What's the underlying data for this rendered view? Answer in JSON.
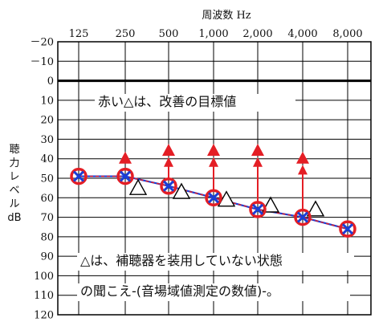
{
  "chart_data": {
    "type": "line",
    "title": "周波数 Hz",
    "xlabel": "周波数 Hz",
    "ylabel": [
      "聴",
      "力",
      "レ",
      "ベ",
      "ル",
      "dB"
    ],
    "x": [
      "125",
      "250",
      "500",
      "1,000",
      "2,000",
      "4,000",
      "8,000"
    ],
    "y_ticks": [
      "－20",
      "－10",
      "0",
      "10",
      "20",
      "30",
      "40",
      "50",
      "60",
      "70",
      "80",
      "90",
      "100",
      "110",
      "120"
    ],
    "ylim": [
      -20,
      120
    ],
    "y_inverted": true,
    "grid": true,
    "series": [
      {
        "marker": "circle-x",
        "values": [
          49,
          49,
          54,
          60,
          66,
          70,
          76
        ]
      },
      {
        "marker": "open-triangle",
        "values": [
          null,
          55,
          57,
          61,
          64,
          66,
          null
        ]
      },
      {
        "marker": "red-triangle",
        "values": [
          null,
          40,
          36,
          36,
          36,
          40,
          null
        ]
      }
    ],
    "arrows": [
      {
        "x": "500",
        "from": 54,
        "to": 40
      },
      {
        "x": "1,000",
        "from": 60,
        "to": 40
      },
      {
        "x": "2,000",
        "from": 66,
        "to": 40
      },
      {
        "x": "4,000",
        "from": 70,
        "to": 44
      }
    ],
    "annotations": [
      "赤い△は、改善の目標値",
      "△は、補聴器を装用していない状態",
      "の聞こえ-(音場域値測定の数値)-。"
    ],
    "colors": {
      "grid": "#000000",
      "circle": "#e41e25",
      "cross": "#1a3fd6",
      "line": "#1a3fd6",
      "line_dash": "#e41e25",
      "target": "#e41e25",
      "arrow": "#e41e25"
    }
  }
}
